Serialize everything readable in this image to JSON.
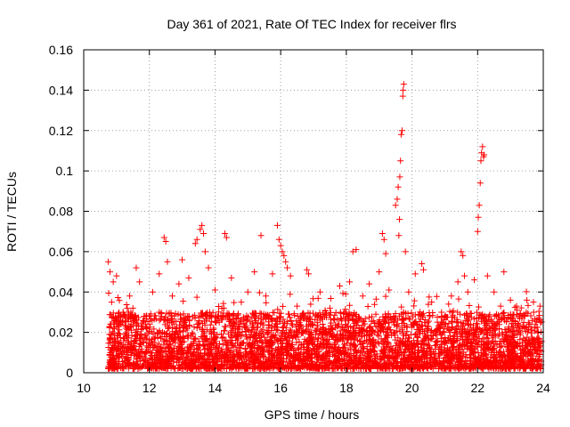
{
  "chart_data": {
    "type": "scatter",
    "title": "Day 361 of 2021, Rate Of TEC Index for receiver flrs",
    "xlabel": "GPS time / hours",
    "ylabel": "ROTI / TECUs",
    "xlim": [
      10,
      24
    ],
    "ylim": [
      0,
      0.16
    ],
    "xticks": [
      10,
      12,
      14,
      16,
      18,
      20,
      22,
      24
    ],
    "yticks": [
      0,
      0.02,
      0.04,
      0.06,
      0.08,
      0.1,
      0.12,
      0.14,
      0.16
    ],
    "xtick_labels": [
      "10",
      "12",
      "14",
      "16",
      "18",
      "20",
      "22",
      "24"
    ],
    "ytick_labels": [
      "0",
      "0.02",
      "0.04",
      "0.06",
      "0.08",
      "0.1",
      "0.12",
      "0.14",
      "0.16"
    ],
    "marker": "+",
    "color": "#ff0000",
    "grid": true,
    "series": [
      {
        "name": "ROTI",
        "points": [
          [
            10.75,
            0.055
          ],
          [
            10.8,
            0.05
          ],
          [
            10.85,
            0.035
          ],
          [
            10.9,
            0.045
          ],
          [
            11.0,
            0.048
          ],
          [
            11.2,
            0.03
          ],
          [
            11.4,
            0.038
          ],
          [
            11.6,
            0.052
          ],
          [
            11.7,
            0.045
          ],
          [
            11.9,
            0.028
          ],
          [
            12.1,
            0.04
          ],
          [
            12.3,
            0.049
          ],
          [
            12.45,
            0.067
          ],
          [
            12.5,
            0.065
          ],
          [
            12.55,
            0.055
          ],
          [
            12.7,
            0.038
          ],
          [
            12.9,
            0.044
          ],
          [
            13.0,
            0.056
          ],
          [
            13.2,
            0.047
          ],
          [
            13.4,
            0.064
          ],
          [
            13.45,
            0.066
          ],
          [
            13.55,
            0.071
          ],
          [
            13.6,
            0.073
          ],
          [
            13.65,
            0.069
          ],
          [
            13.7,
            0.06
          ],
          [
            13.8,
            0.052
          ],
          [
            14.0,
            0.041
          ],
          [
            14.3,
            0.069
          ],
          [
            14.35,
            0.067
          ],
          [
            14.5,
            0.047
          ],
          [
            14.8,
            0.035
          ],
          [
            15.0,
            0.04
          ],
          [
            15.2,
            0.05
          ],
          [
            15.4,
            0.068
          ],
          [
            15.55,
            0.038
          ],
          [
            15.75,
            0.049
          ],
          [
            15.9,
            0.073
          ],
          [
            15.95,
            0.066
          ],
          [
            16.0,
            0.063
          ],
          [
            16.05,
            0.06
          ],
          [
            16.1,
            0.058
          ],
          [
            16.15,
            0.055
          ],
          [
            16.2,
            0.052
          ],
          [
            16.3,
            0.048
          ],
          [
            16.5,
            0.033
          ],
          [
            16.8,
            0.051
          ],
          [
            16.85,
            0.049
          ],
          [
            17.2,
            0.04
          ],
          [
            17.5,
            0.032
          ],
          [
            17.8,
            0.043
          ],
          [
            18.1,
            0.045
          ],
          [
            18.2,
            0.06
          ],
          [
            18.3,
            0.061
          ],
          [
            18.5,
            0.038
          ],
          [
            18.7,
            0.044
          ],
          [
            18.9,
            0.029
          ],
          [
            19.0,
            0.05
          ],
          [
            19.1,
            0.069
          ],
          [
            19.15,
            0.066
          ],
          [
            19.2,
            0.059
          ],
          [
            19.3,
            0.041
          ],
          [
            19.5,
            0.083
          ],
          [
            19.55,
            0.086
          ],
          [
            19.58,
            0.092
          ],
          [
            19.6,
            0.068
          ],
          [
            19.62,
            0.076
          ],
          [
            19.63,
            0.097
          ],
          [
            19.65,
            0.105
          ],
          [
            19.67,
            0.118
          ],
          [
            19.7,
            0.12
          ],
          [
            19.72,
            0.137
          ],
          [
            19.73,
            0.14
          ],
          [
            19.75,
            0.143
          ],
          [
            19.8,
            0.06
          ],
          [
            19.9,
            0.04
          ],
          [
            20.1,
            0.049
          ],
          [
            20.3,
            0.054
          ],
          [
            20.35,
            0.051
          ],
          [
            20.6,
            0.035
          ],
          [
            20.9,
            0.03
          ],
          [
            21.2,
            0.038
          ],
          [
            21.4,
            0.045
          ],
          [
            21.5,
            0.06
          ],
          [
            21.55,
            0.058
          ],
          [
            21.6,
            0.048
          ],
          [
            21.7,
            0.04
          ],
          [
            21.9,
            0.046
          ],
          [
            22.0,
            0.07
          ],
          [
            22.02,
            0.077
          ],
          [
            22.05,
            0.083
          ],
          [
            22.08,
            0.094
          ],
          [
            22.1,
            0.105
          ],
          [
            22.12,
            0.109
          ],
          [
            22.15,
            0.112
          ],
          [
            22.18,
            0.107
          ],
          [
            22.2,
            0.108
          ],
          [
            22.3,
            0.048
          ],
          [
            22.5,
            0.04
          ],
          [
            22.7,
            0.033
          ],
          [
            22.8,
            0.05
          ],
          [
            23.0,
            0.036
          ],
          [
            23.2,
            0.031
          ],
          [
            23.5,
            0.036
          ],
          [
            23.7,
            0.035
          ],
          [
            23.9,
            0.033
          ]
        ]
      }
    ],
    "dense_band": {
      "x_start": 10.75,
      "x_end": 23.95,
      "y_min": 0.002,
      "y_typical_max": 0.03
    }
  }
}
